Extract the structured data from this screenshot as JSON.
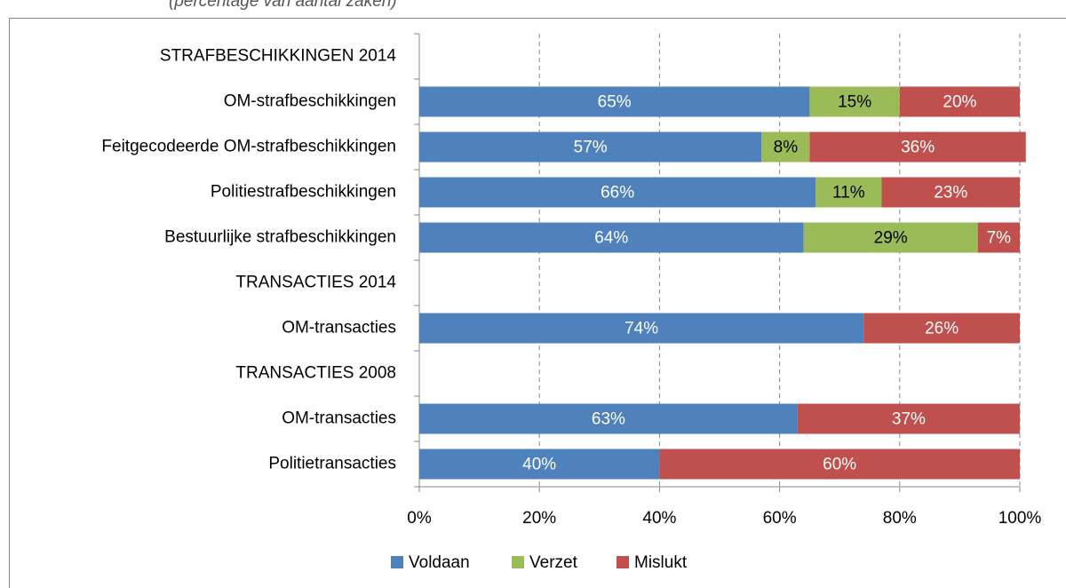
{
  "chart_data": {
    "type": "stacked-bar-horizontal",
    "subtitle": "(percentage van aantal zaken)",
    "categories": [
      "STRAFBESCHIKKINGEN 2014",
      "OM-strafbeschikkingen",
      "Feitgecodeerde OM-strafbeschikkingen",
      "Politiestrafbeschikkingen",
      "Bestuurlijke strafbeschikkingen",
      "TRANSACTIES 2014",
      "OM-transacties",
      "TRANSACTIES 2008",
      "OM-transacties",
      "Politietransacties"
    ],
    "series": [
      {
        "name": "Voldaan",
        "color": "#4f81bd",
        "values": [
          null,
          65,
          57,
          66,
          64,
          null,
          74,
          null,
          63,
          40
        ],
        "value_labels": [
          null,
          "65%",
          "57%",
          "66%",
          "64%",
          null,
          "74%",
          null,
          "63%",
          "40%"
        ]
      },
      {
        "name": "Verzet",
        "color": "#9bbb59",
        "values": [
          null,
          15,
          8,
          11,
          29,
          null,
          null,
          null,
          null,
          null
        ],
        "value_labels": [
          null,
          "15%",
          "8%",
          "11%",
          "29%",
          null,
          null,
          null,
          null,
          null
        ]
      },
      {
        "name": "Mislukt",
        "color": "#c0504d",
        "values": [
          null,
          20,
          36,
          23,
          7,
          null,
          26,
          null,
          37,
          60
        ],
        "value_labels": [
          null,
          "20%",
          "36%",
          "23%",
          "7%",
          null,
          "26%",
          null,
          "37%",
          "60%"
        ]
      }
    ],
    "xlim": [
      0,
      100
    ],
    "xticks": [
      {
        "value": 0,
        "label": "0%"
      },
      {
        "value": 20,
        "label": "20%"
      },
      {
        "value": 40,
        "label": "40%"
      },
      {
        "value": 60,
        "label": "60%"
      },
      {
        "value": 80,
        "label": "80%"
      },
      {
        "value": 100,
        "label": "100%"
      }
    ],
    "grid": true,
    "legend": "bottom"
  }
}
